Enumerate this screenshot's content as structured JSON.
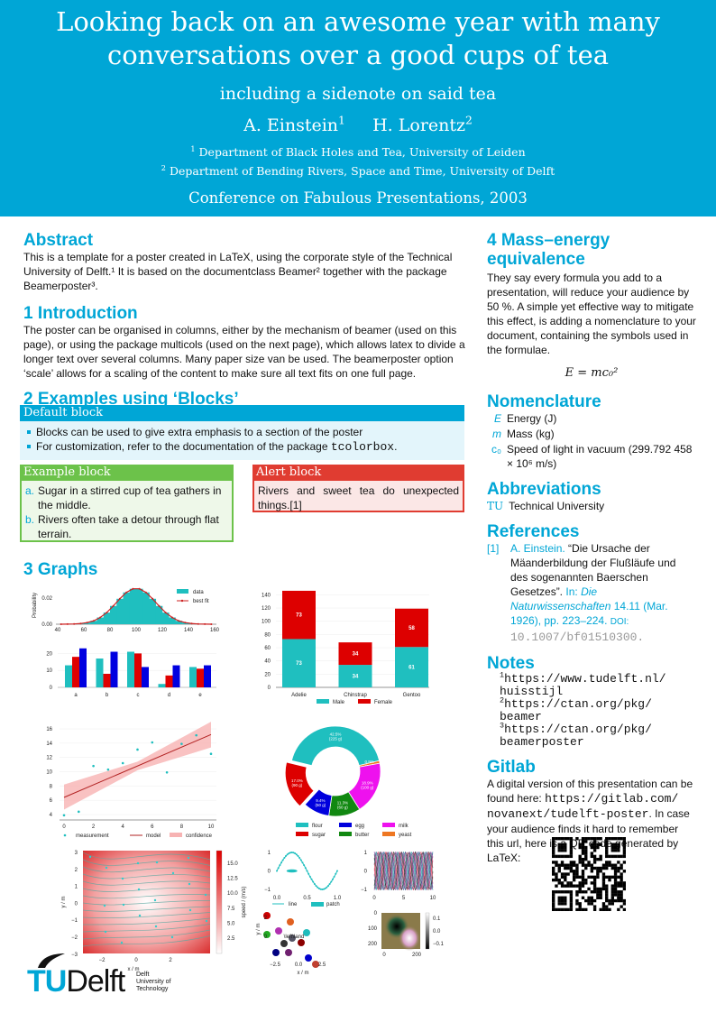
{
  "header": {
    "title_line1": "Looking back on an awesome year with many",
    "title_line2": "conversations over a good cups of tea",
    "subtitle": "including a sidenote on said tea",
    "authors": [
      {
        "name": "A. Einstein",
        "mark": "1"
      },
      {
        "name": "H. Lorentz",
        "mark": "2"
      }
    ],
    "affiliations": [
      {
        "mark": "1",
        "text": "Department of Black Holes and Tea, University of Leiden"
      },
      {
        "mark": "2",
        "text": "Department of Bending Rivers, Space and Time, University of Delft"
      }
    ],
    "conference": "Conference on Fabulous Presentations, 2003"
  },
  "colors": {
    "accent": "#00a6d6",
    "green": "#6cc24a",
    "red": "#e03c31",
    "cyan": "#1fbfbf"
  },
  "abstract": {
    "heading": "Abstract",
    "text": "This is a template for a poster created in LaTeX, using the corporate style of the Technical University of Delft.¹ It is based on the documentclass Beamer² together with the package Beamerposter³."
  },
  "intro": {
    "heading": "1 Introduction",
    "text": "The poster can be organised in columns, either by the mechanism of beamer (used on this page), or using the package multicols (used on the next page), which allows latex to divide a longer text over several columns. Many paper size van be used. The beamerposter option ‘scale’ allows for a scaling of the content to make sure all text fits on one full page."
  },
  "examples": {
    "heading": "2 Examples using ‘Blocks’",
    "default_block": {
      "title": "Default block",
      "items": [
        "Blocks can be used to give extra emphasis to a section of the poster",
        "For customization, refer to the documentation of the package "
      ],
      "package": "tcolorbox",
      "period": "."
    },
    "example_block": {
      "title": "Example block",
      "items": [
        {
          "mark": "a.",
          "text": "Sugar in a stirred cup of tea gathers in the middle."
        },
        {
          "mark": "b.",
          "text": "Rivers often take a detour through flat terrain."
        }
      ]
    },
    "alert_block": {
      "title": "Alert block",
      "text": "Rivers and sweet tea do unexpected things.[1]"
    }
  },
  "graphs": {
    "heading": "3 Graphs"
  },
  "mass_energy": {
    "heading_line1": "4 Mass–energy",
    "heading_line2": "equivalence",
    "text": "They say every formula you add to a presentation, will reduce your audience by 50 %. A simple yet effective way to mitigate this effect, is adding a nomenclature to your document, containing the symbols used in the formulae.",
    "formula": "E = mc₀²"
  },
  "nomenclature": {
    "heading": "Nomenclature",
    "items": [
      {
        "symbol": "E",
        "text": "Energy (J)"
      },
      {
        "symbol": "m",
        "text": "Mass (kg)"
      },
      {
        "symbol": "c₀",
        "text": "Speed of light in vacuum (299.792 458 × 10⁶ m/s)"
      }
    ]
  },
  "abbreviations": {
    "heading": "Abbreviations",
    "items": [
      {
        "symbol": "TU",
        "text": "Technical University"
      }
    ]
  },
  "references": {
    "heading": "References",
    "items": [
      {
        "label": "[1]",
        "author": "A. Einstein.",
        "title": "“Die Ursache der Mäanderbildung der Flußläufe und des sogenannten Baerschen Gesetzes”.",
        "in": "In:",
        "journal": "Die Naturwissenschaften",
        "details": "14.11 (Mar. 1926), pp. 223–224.",
        "doi_label": "DOI:",
        "doi": "10.1007/bf01510300."
      }
    ]
  },
  "notes": {
    "heading": "Notes",
    "items": [
      {
        "mark": "1",
        "text": "https://www.tudelft.nl/ huisstijl"
      },
      {
        "mark": "2",
        "text": "https://ctan.org/pkg/ beamer"
      },
      {
        "mark": "3",
        "text": "https://ctan.org/pkg/ beamerposter"
      }
    ]
  },
  "gitlab": {
    "heading": "Gitlab",
    "text1": "A digital version of this presentation can be found here: ",
    "url": "https://gitlab.com/ novanext/tudelft-poster",
    "text2": ". In case your audience finds it hard to remember this url, here is a QR code generated by LaTeX:"
  },
  "logo": {
    "text": "TUDelft",
    "sub": [
      "Delft",
      "University of",
      "Technology"
    ]
  },
  "chart_data": [
    {
      "type": "bar",
      "kind": "histogram",
      "ylabel": "Probability",
      "xlim": [
        40,
        160
      ],
      "xticks": [
        "40",
        "60",
        "80",
        "100",
        "120",
        "140",
        "160"
      ],
      "yticks": [
        "0.00",
        "0.02"
      ],
      "bin_width": 5,
      "bin_centers": [
        42.5,
        47.5,
        52.5,
        57.5,
        62.5,
        67.5,
        72.5,
        77.5,
        82.5,
        87.5,
        92.5,
        97.5,
        102.5,
        107.5,
        112.5,
        117.5,
        122.5,
        127.5,
        132.5,
        137.5,
        142.5,
        147.5,
        152.5,
        157.5
      ],
      "values": [
        0.0,
        0.0001,
        0.0002,
        0.0005,
        0.0012,
        0.0025,
        0.005,
        0.0086,
        0.0135,
        0.0188,
        0.0235,
        0.0262,
        0.0262,
        0.0235,
        0.0188,
        0.0135,
        0.0086,
        0.005,
        0.0025,
        0.0012,
        0.0005,
        0.0002,
        0.0001,
        0.0
      ],
      "legend": [
        "data",
        "best fit"
      ],
      "legend_position": "top-right"
    },
    {
      "type": "bar",
      "kind": "grouped",
      "categories": [
        "a",
        "b",
        "c",
        "d",
        "e"
      ],
      "yticks": [
        "0",
        "10",
        "20"
      ],
      "ylim": [
        0,
        25
      ],
      "series": [
        {
          "values": [
            13,
            17,
            21,
            2,
            12
          ],
          "color": "#1fbfbf"
        },
        {
          "values": [
            18,
            8,
            20,
            7,
            11
          ],
          "color": "#e00000"
        },
        {
          "values": [
            23,
            21,
            12,
            13,
            13
          ],
          "color": "#0000e0"
        }
      ]
    },
    {
      "type": "bar",
      "kind": "stacked",
      "categories": [
        "Adelie",
        "Chinstrap",
        "Gentoo"
      ],
      "ylim": [
        0,
        150
      ],
      "yticks": [
        "0",
        "20",
        "40",
        "60",
        "80",
        "100",
        "120",
        "140"
      ],
      "series": [
        {
          "name": "Male",
          "values": [
            73,
            34,
            61
          ],
          "color": "#1fbfbf"
        },
        {
          "name": "Female",
          "values": [
            73,
            34,
            58
          ],
          "color": "#dd0000"
        }
      ],
      "legend_position": "bottom"
    },
    {
      "type": "scatter",
      "x": [
        0,
        1,
        2,
        3,
        4,
        5,
        6,
        7,
        8,
        9,
        10
      ],
      "y": [
        3.9,
        4.4,
        10.8,
        10.3,
        11.2,
        13.1,
        14.1,
        9.9,
        13.9,
        15.1,
        12.5
      ],
      "model": [
        6.4,
        15.2
      ],
      "confidence_low": [
        4.7,
        13.4
      ],
      "confidence_high": [
        8.2,
        17.0
      ],
      "xticks": [
        "0",
        "2",
        "4",
        "6",
        "8",
        "10"
      ],
      "yticks": [
        "4",
        "6",
        "8",
        "10",
        "12",
        "14",
        "16"
      ],
      "xlim": [
        0,
        10
      ],
      "ylim": [
        4,
        16
      ],
      "legend": [
        "measurement",
        "model",
        "confidence"
      ],
      "legend_position": "bottom"
    },
    {
      "type": "pie",
      "donut": true,
      "labels": [
        "flour",
        "sugar",
        "egg",
        "butter",
        "milk",
        "yeast"
      ],
      "values": [
        225,
        90,
        50,
        60,
        100,
        5
      ],
      "slice_labels": [
        "42.5%\n(225 g)",
        "17.0%\n(90 g)",
        "9.4%\n(50 g)",
        "11.3%\n(60 g)",
        "18.9%\n(100 g)",
        "0.9%\n(5 g)"
      ],
      "colors": [
        "#1fbfbf",
        "#dd0000",
        "#0000dd",
        "#118811",
        "#ee11ee",
        "#ee7722"
      ],
      "exploded": "sugar",
      "legend_position": "bottom"
    },
    {
      "type": "heatmap",
      "kind": "streamplot",
      "xlabel": "x / m",
      "ylabel": "y / m",
      "colorbar_label": "speed / (m/s)",
      "xticks": [
        "−2",
        "0",
        "2"
      ],
      "yticks": [
        "3",
        "2",
        "1",
        "0",
        "−1",
        "−2",
        "−3"
      ],
      "colorbar_ticks": [
        "15.0",
        "12.5",
        "10.0",
        "7.5",
        "5.0",
        "2.5"
      ]
    },
    {
      "type": "line",
      "x_range": [
        0,
        1
      ],
      "function": "sin(2πx)",
      "xticks": [
        "0.0",
        "0.5",
        "1.0"
      ],
      "yticks": [
        "1",
        "0",
        "−1"
      ],
      "legend": [
        "line",
        "patch"
      ]
    },
    {
      "type": "line",
      "kind": "many-lines",
      "xticks": [
        "0",
        "5",
        "10"
      ],
      "yticks": [
        "1",
        "0",
        "−1"
      ]
    },
    {
      "type": "scatter",
      "xlabel": "x / m",
      "ylabel": "y / m",
      "xticks": [
        "−2.5",
        "0.0",
        "2.5"
      ],
      "yticks": [
        "2",
        "0"
      ],
      "annotation": "\\left\\land"
    },
    {
      "type": "heatmap",
      "kind": "image",
      "xticks": [
        "0",
        "200"
      ],
      "yticks": [
        "0",
        "100",
        "200"
      ],
      "colorbar_ticks": [
        "0.1",
        "0.0",
        "−0.1"
      ]
    }
  ]
}
